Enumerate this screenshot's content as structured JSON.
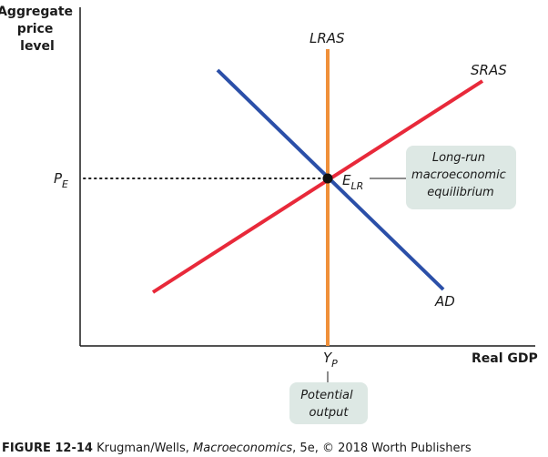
{
  "diagram": {
    "y_axis_title": [
      "Aggregate",
      "price",
      "level"
    ],
    "x_axis_title": "Real GDP",
    "curves": {
      "lras": "LRAS",
      "sras": "SRAS",
      "ad": "AD"
    },
    "price_label": {
      "main": "P",
      "sub": "E"
    },
    "output_label": {
      "main": "Y",
      "sub": "P"
    },
    "equilibrium_label": {
      "main": "E",
      "sub": "LR"
    },
    "callout_equilibrium": [
      "Long-run",
      "macroeconomic",
      "equilibrium"
    ],
    "callout_output": [
      "Potential",
      "output"
    ],
    "colors": {
      "lras": "#f0903a",
      "sras": "#e8293a",
      "ad": "#2b4fa8",
      "callout_bg": "#dde8e4",
      "axis": "#1a1a1a"
    }
  },
  "caption": {
    "figure": "FIGURE 12-14",
    "authors": " Krugman/Wells, ",
    "book": "Macroeconomics",
    "rest": ", 5e, © 2018 Worth Publishers"
  }
}
